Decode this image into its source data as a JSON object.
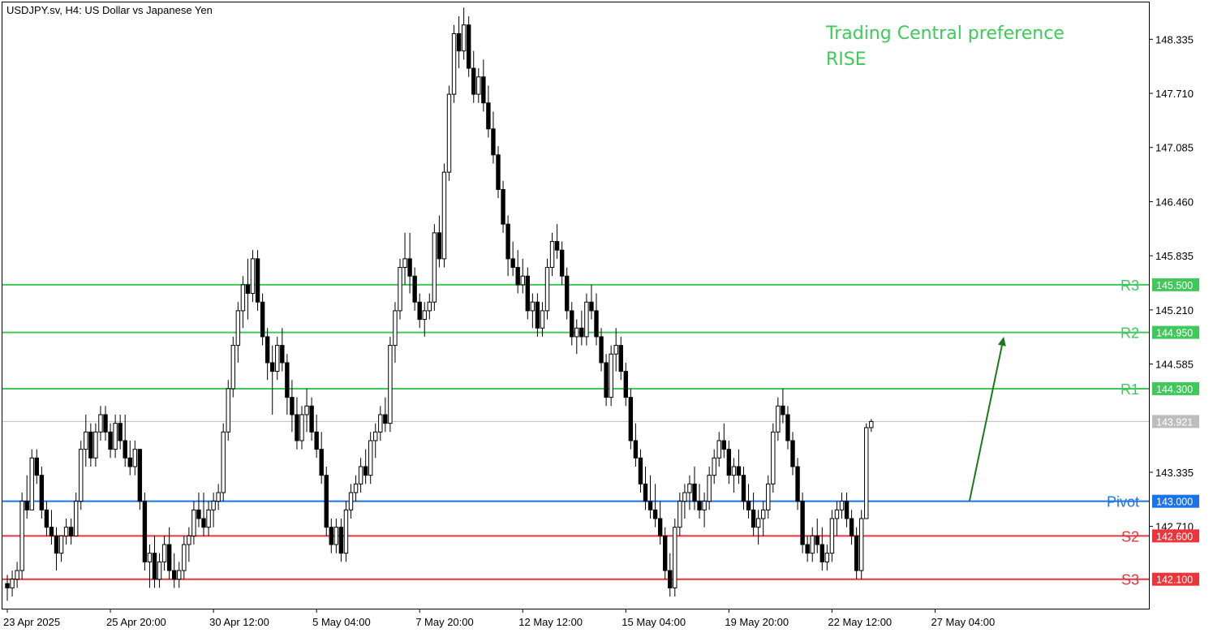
{
  "header": {
    "title": "USDJPY.sv, H4:  US Dollar vs Japanese Yen"
  },
  "preference": {
    "line1": "Trading Central preference",
    "line2": "RISE",
    "color": "#3fc95a"
  },
  "colors": {
    "resistance": "#3fc95a",
    "pivot": "#1a73e8",
    "support": "#e8363a",
    "current": "#bdbdbd",
    "arrow": "#1a7a1a",
    "candle": "#000000"
  },
  "chart_data": {
    "type": "candlestick",
    "title": "",
    "xlabel": "",
    "ylabel": "",
    "ylim": [
      141.76,
      148.76
    ],
    "y_ticks": [
      148.335,
      147.71,
      147.085,
      146.46,
      145.835,
      145.21,
      144.585,
      143.335,
      142.71
    ],
    "y_tick_labels": [
      "148.335",
      "147.710",
      "147.085",
      "146.460",
      "145.835",
      "145.210",
      "144.585",
      "143.335",
      "142.710"
    ],
    "x_tick_labels": [
      "23 Apr 2025",
      "25 Apr 20:00",
      "30 Apr 12:00",
      "5 May 04:00",
      "7 May 20:00",
      "12 May 12:00",
      "15 May 04:00",
      "19 May 20:00",
      "22 May 12:00",
      "27 May 04:00"
    ],
    "x_tick_index": [
      0,
      21,
      42,
      63,
      84,
      105,
      126,
      147,
      168,
      189
    ],
    "levels": [
      {
        "name": "R3",
        "value": 145.5,
        "label": "145.500",
        "kind": "resistance"
      },
      {
        "name": "R2",
        "value": 144.95,
        "label": "144.950",
        "kind": "resistance"
      },
      {
        "name": "R1",
        "value": 144.3,
        "label": "144.300",
        "kind": "resistance"
      },
      {
        "name": "Pivot",
        "value": 143.0,
        "label": "143.000",
        "kind": "pivot"
      },
      {
        "name": "S2",
        "value": 142.6,
        "label": "142.600",
        "kind": "support"
      },
      {
        "name": "S3",
        "value": 142.1,
        "label": "142.100",
        "kind": "support"
      }
    ],
    "current_price": {
      "value": 143.921,
      "label": "143.921"
    },
    "arrow": {
      "from_index": 196,
      "from_value": 143.0,
      "to_index": 203,
      "to_value": 144.9
    },
    "ohlc": [
      [
        142.05,
        142.15,
        141.85,
        142.0
      ],
      [
        142.0,
        142.2,
        141.9,
        142.1
      ],
      [
        142.1,
        142.3,
        142.0,
        142.2
      ],
      [
        142.2,
        143.1,
        142.1,
        143.0
      ],
      [
        143.0,
        143.3,
        142.8,
        142.9
      ],
      [
        142.9,
        143.6,
        142.9,
        143.5
      ],
      [
        143.5,
        143.6,
        143.2,
        143.3
      ],
      [
        143.3,
        143.4,
        142.8,
        142.9
      ],
      [
        142.9,
        143.0,
        142.6,
        142.7
      ],
      [
        142.7,
        142.9,
        142.5,
        142.6
      ],
      [
        142.6,
        142.7,
        142.2,
        142.4
      ],
      [
        142.4,
        142.6,
        142.3,
        142.6
      ],
      [
        142.6,
        142.8,
        142.5,
        142.7
      ],
      [
        142.7,
        142.8,
        142.5,
        142.6
      ],
      [
        142.6,
        143.1,
        142.6,
        143.0
      ],
      [
        143.0,
        143.7,
        142.9,
        143.6
      ],
      [
        143.6,
        144.0,
        143.4,
        143.8
      ],
      [
        143.8,
        143.9,
        143.4,
        143.5
      ],
      [
        143.5,
        143.9,
        143.4,
        143.8
      ],
      [
        143.8,
        144.1,
        143.7,
        144.0
      ],
      [
        144.0,
        144.1,
        143.7,
        143.8
      ],
      [
        143.8,
        143.9,
        143.5,
        143.6
      ],
      [
        143.6,
        144.0,
        143.5,
        143.9
      ],
      [
        143.9,
        144.0,
        143.6,
        143.7
      ],
      [
        143.7,
        144.0,
        143.4,
        143.5
      ],
      [
        143.5,
        143.7,
        143.3,
        143.4
      ],
      [
        143.4,
        143.7,
        143.3,
        143.6
      ],
      [
        143.6,
        143.6,
        142.9,
        143.0
      ],
      [
        143.0,
        143.1,
        142.2,
        142.3
      ],
      [
        142.3,
        142.5,
        142.0,
        142.4
      ],
      [
        142.4,
        142.6,
        142.0,
        142.1
      ],
      [
        142.1,
        142.4,
        142.0,
        142.3
      ],
      [
        142.3,
        142.6,
        142.2,
        142.5
      ],
      [
        142.5,
        142.7,
        142.1,
        142.2
      ],
      [
        142.2,
        142.4,
        142.0,
        142.1
      ],
      [
        142.1,
        142.3,
        142.0,
        142.2
      ],
      [
        142.2,
        142.6,
        142.1,
        142.5
      ],
      [
        142.5,
        142.7,
        142.3,
        142.6
      ],
      [
        142.6,
        143.0,
        142.5,
        142.9
      ],
      [
        142.9,
        143.1,
        142.7,
        142.8
      ],
      [
        142.8,
        143.1,
        142.6,
        142.7
      ],
      [
        142.7,
        143.0,
        142.6,
        142.9
      ],
      [
        142.9,
        143.1,
        142.7,
        143.0
      ],
      [
        143.0,
        143.2,
        142.9,
        143.1
      ],
      [
        143.1,
        143.9,
        143.0,
        143.8
      ],
      [
        143.8,
        144.4,
        143.7,
        144.3
      ],
      [
        144.3,
        144.9,
        144.2,
        144.8
      ],
      [
        144.8,
        145.3,
        144.6,
        145.2
      ],
      [
        145.2,
        145.6,
        145.0,
        145.5
      ],
      [
        145.5,
        145.8,
        145.1,
        145.4
      ],
      [
        145.4,
        145.9,
        145.3,
        145.8
      ],
      [
        145.8,
        145.9,
        145.2,
        145.3
      ],
      [
        145.3,
        145.4,
        144.8,
        144.9
      ],
      [
        144.9,
        145.0,
        144.4,
        144.6
      ],
      [
        144.6,
        144.8,
        144.0,
        144.5
      ],
      [
        144.5,
        144.9,
        144.4,
        144.8
      ],
      [
        144.8,
        145.0,
        144.5,
        144.6
      ],
      [
        144.6,
        144.7,
        144.0,
        144.2
      ],
      [
        144.2,
        144.4,
        143.8,
        144.0
      ],
      [
        144.0,
        144.2,
        143.6,
        143.7
      ],
      [
        143.7,
        144.1,
        143.6,
        144.0
      ],
      [
        144.0,
        144.3,
        143.8,
        144.1
      ],
      [
        144.1,
        144.2,
        143.7,
        143.8
      ],
      [
        143.8,
        144.0,
        143.5,
        143.6
      ],
      [
        143.6,
        143.8,
        143.2,
        143.3
      ],
      [
        143.3,
        143.4,
        142.6,
        142.7
      ],
      [
        142.7,
        142.8,
        142.4,
        142.5
      ],
      [
        142.5,
        142.8,
        142.4,
        142.7
      ],
      [
        142.7,
        142.8,
        142.3,
        142.4
      ],
      [
        142.4,
        143.0,
        142.3,
        142.9
      ],
      [
        142.9,
        143.2,
        142.8,
        143.1
      ],
      [
        143.1,
        143.3,
        143.0,
        143.2
      ],
      [
        143.2,
        143.5,
        143.1,
        143.4
      ],
      [
        143.4,
        143.6,
        143.2,
        143.3
      ],
      [
        143.3,
        143.8,
        143.2,
        143.7
      ],
      [
        143.7,
        143.9,
        143.5,
        143.8
      ],
      [
        143.8,
        144.1,
        143.7,
        144.0
      ],
      [
        144.0,
        144.2,
        143.8,
        143.9
      ],
      [
        143.9,
        144.9,
        143.8,
        144.8
      ],
      [
        144.8,
        145.3,
        144.6,
        145.2
      ],
      [
        145.2,
        145.8,
        145.1,
        145.7
      ],
      [
        145.7,
        146.1,
        145.5,
        145.8
      ],
      [
        145.8,
        146.1,
        145.4,
        145.6
      ],
      [
        145.6,
        145.7,
        145.2,
        145.3
      ],
      [
        145.3,
        145.4,
        145.0,
        145.1
      ],
      [
        145.1,
        145.3,
        144.9,
        145.2
      ],
      [
        145.2,
        145.4,
        145.1,
        145.3
      ],
      [
        145.3,
        146.2,
        145.2,
        146.1
      ],
      [
        146.1,
        146.3,
        145.7,
        145.8
      ],
      [
        145.8,
        146.9,
        145.7,
        146.8
      ],
      [
        146.8,
        147.8,
        146.7,
        147.7
      ],
      [
        147.7,
        148.5,
        147.6,
        148.4
      ],
      [
        148.4,
        148.6,
        148.0,
        148.2
      ],
      [
        148.2,
        148.7,
        148.1,
        148.5
      ],
      [
        148.5,
        148.6,
        147.9,
        148.0
      ],
      [
        148.0,
        148.2,
        147.6,
        147.7
      ],
      [
        147.7,
        148.0,
        147.6,
        147.9
      ],
      [
        147.9,
        148.1,
        147.5,
        147.6
      ],
      [
        147.6,
        147.8,
        147.2,
        147.3
      ],
      [
        147.3,
        147.5,
        146.9,
        147.0
      ],
      [
        147.0,
        147.1,
        146.5,
        146.6
      ],
      [
        146.6,
        146.7,
        146.1,
        146.2
      ],
      [
        146.2,
        146.3,
        145.6,
        145.8
      ],
      [
        145.8,
        146.0,
        145.6,
        145.7
      ],
      [
        145.7,
        145.9,
        145.4,
        145.5
      ],
      [
        145.5,
        145.8,
        145.4,
        145.6
      ],
      [
        145.6,
        145.7,
        145.1,
        145.2
      ],
      [
        145.2,
        145.4,
        145.0,
        145.3
      ],
      [
        145.3,
        145.4,
        144.9,
        145.0
      ],
      [
        145.0,
        145.3,
        144.9,
        145.2
      ],
      [
        145.2,
        145.8,
        145.1,
        145.7
      ],
      [
        145.7,
        146.1,
        145.6,
        146.0
      ],
      [
        146.0,
        146.2,
        145.8,
        145.9
      ],
      [
        145.9,
        146.0,
        145.5,
        145.6
      ],
      [
        145.6,
        145.7,
        145.1,
        145.2
      ],
      [
        145.2,
        145.3,
        144.8,
        144.9
      ],
      [
        144.9,
        145.1,
        144.7,
        145.0
      ],
      [
        145.0,
        145.2,
        144.8,
        144.9
      ],
      [
        144.9,
        145.4,
        144.8,
        145.3
      ],
      [
        145.3,
        145.5,
        145.1,
        145.2
      ],
      [
        145.2,
        145.4,
        144.8,
        144.9
      ],
      [
        144.9,
        145.0,
        144.5,
        144.6
      ],
      [
        144.6,
        144.7,
        144.1,
        144.2
      ],
      [
        144.2,
        144.8,
        144.1,
        144.7
      ],
      [
        144.7,
        145.0,
        144.5,
        144.8
      ],
      [
        144.8,
        144.9,
        144.4,
        144.5
      ],
      [
        144.5,
        144.6,
        144.1,
        144.2
      ],
      [
        144.2,
        144.3,
        143.6,
        143.7
      ],
      [
        143.7,
        143.9,
        143.4,
        143.5
      ],
      [
        143.5,
        143.6,
        143.1,
        143.2
      ],
      [
        143.2,
        143.4,
        142.9,
        143.0
      ],
      [
        143.0,
        143.3,
        142.8,
        142.9
      ],
      [
        142.9,
        143.2,
        142.7,
        142.8
      ],
      [
        142.8,
        143.0,
        142.5,
        142.6
      ],
      [
        142.6,
        142.7,
        142.1,
        142.2
      ],
      [
        142.2,
        142.4,
        141.9,
        142.0
      ],
      [
        142.0,
        142.8,
        141.9,
        142.7
      ],
      [
        142.7,
        143.1,
        142.6,
        143.0
      ],
      [
        143.0,
        143.2,
        142.8,
        143.1
      ],
      [
        143.1,
        143.3,
        142.9,
        143.2
      ],
      [
        143.2,
        143.4,
        142.9,
        143.0
      ],
      [
        143.0,
        143.2,
        142.8,
        142.9
      ],
      [
        142.9,
        143.1,
        142.7,
        143.0
      ],
      [
        143.0,
        143.4,
        142.9,
        143.3
      ],
      [
        143.3,
        143.6,
        143.2,
        143.5
      ],
      [
        143.5,
        143.8,
        143.4,
        143.7
      ],
      [
        143.7,
        143.9,
        143.5,
        143.6
      ],
      [
        143.6,
        143.7,
        143.2,
        143.3
      ],
      [
        143.3,
        143.5,
        143.1,
        143.4
      ],
      [
        143.4,
        143.6,
        143.2,
        143.3
      ],
      [
        143.3,
        143.4,
        142.9,
        143.0
      ],
      [
        143.0,
        143.2,
        142.8,
        142.9
      ],
      [
        142.9,
        143.1,
        142.6,
        142.7
      ],
      [
        142.7,
        142.9,
        142.5,
        142.8
      ],
      [
        142.8,
        143.0,
        142.6,
        142.9
      ],
      [
        142.9,
        143.3,
        142.8,
        143.2
      ],
      [
        143.2,
        143.9,
        143.1,
        143.8
      ],
      [
        143.8,
        144.2,
        143.7,
        144.1
      ],
      [
        144.1,
        144.3,
        143.9,
        144.0
      ],
      [
        144.0,
        144.1,
        143.6,
        143.7
      ],
      [
        143.7,
        143.8,
        143.3,
        143.4
      ],
      [
        143.4,
        143.5,
        142.9,
        143.0
      ],
      [
        143.0,
        143.1,
        142.4,
        142.5
      ],
      [
        142.5,
        142.6,
        142.3,
        142.4
      ],
      [
        142.4,
        142.7,
        142.3,
        142.6
      ],
      [
        142.6,
        142.8,
        142.4,
        142.5
      ],
      [
        142.5,
        142.7,
        142.2,
        142.3
      ],
      [
        142.3,
        142.5,
        142.2,
        142.4
      ],
      [
        142.4,
        142.9,
        142.3,
        142.8
      ],
      [
        142.8,
        143.0,
        142.6,
        142.9
      ],
      [
        142.9,
        143.1,
        142.8,
        143.0
      ],
      [
        143.0,
        143.1,
        142.7,
        142.8
      ],
      [
        142.8,
        142.9,
        142.5,
        142.6
      ],
      [
        142.6,
        142.7,
        142.1,
        142.2
      ],
      [
        142.2,
        142.9,
        142.1,
        142.8
      ],
      [
        142.8,
        143.9,
        142.8,
        143.85
      ],
      [
        143.85,
        143.95,
        143.8,
        143.921
      ]
    ]
  }
}
